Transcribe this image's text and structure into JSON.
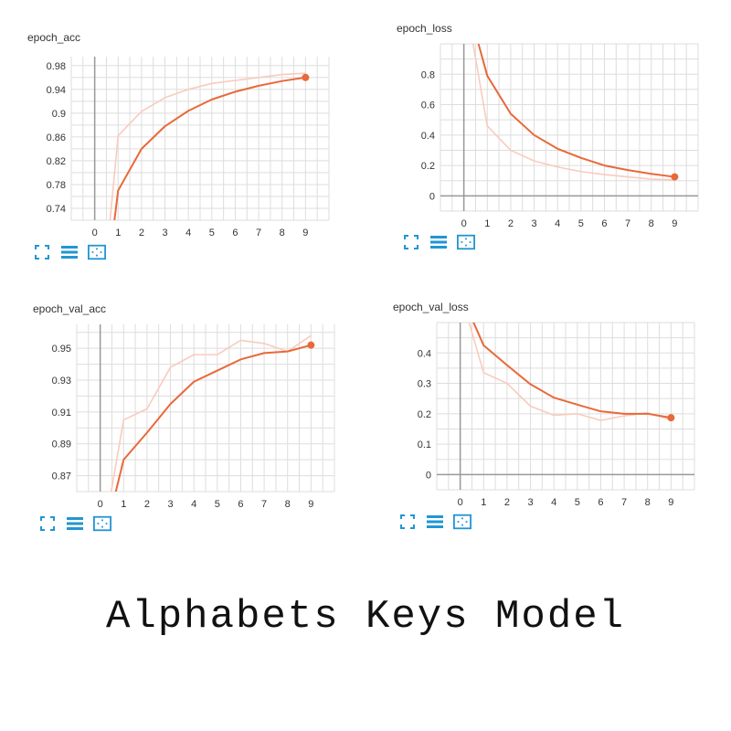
{
  "page_title": "Alphabets Keys Model",
  "colors": {
    "series": "#e8693a",
    "raw": "#f9cbbd",
    "axis": "#999999",
    "grid": "#dddddd",
    "icon": "#2196d3"
  },
  "toolbar_icons": [
    "expand-icon",
    "list-icon",
    "fit-icon"
  ],
  "chart_data": [
    {
      "type": "line",
      "title": "epoch_acc",
      "x": [
        0,
        1,
        2,
        3,
        4,
        5,
        6,
        7,
        8,
        9
      ],
      "xlim": [
        -1,
        10
      ],
      "ylim": [
        0.72,
        0.995
      ],
      "yticks": [
        "0.74",
        "0.78",
        "0.82",
        "0.86",
        "0.9",
        "0.94",
        "0.98"
      ],
      "ytick_values": [
        0.74,
        0.78,
        0.82,
        0.86,
        0.9,
        0.94,
        0.98
      ],
      "xticks": [
        "0",
        "1",
        "2",
        "3",
        "4",
        "5",
        "6",
        "7",
        "8",
        "9"
      ],
      "series": [
        {
          "values": [
            0.45,
            0.77,
            0.84,
            0.878,
            0.904,
            0.923,
            0.936,
            0.946,
            0.954,
            0.96
          ]
        },
        {
          "values": [
            0.45,
            0.862,
            0.903,
            0.926,
            0.94,
            0.95,
            0.955,
            0.96,
            0.965,
            0.967
          ]
        }
      ]
    },
    {
      "type": "line",
      "title": "epoch_loss",
      "x": [
        0,
        1,
        2,
        3,
        4,
        5,
        6,
        7,
        8,
        9
      ],
      "xlim": [
        -1,
        10
      ],
      "ylim": [
        -0.1,
        1.0
      ],
      "yticks": [
        "0",
        "0.2",
        "0.4",
        "0.6",
        "0.8"
      ],
      "ytick_values": [
        0,
        0.2,
        0.4,
        0.6,
        0.8
      ],
      "xticks": [
        "0",
        "1",
        "2",
        "3",
        "4",
        "5",
        "6",
        "7",
        "8",
        "9"
      ],
      "series": [
        {
          "values": [
            1.35,
            0.79,
            0.54,
            0.4,
            0.31,
            0.25,
            0.2,
            0.17,
            0.145,
            0.125
          ]
        },
        {
          "values": [
            1.35,
            0.46,
            0.3,
            0.23,
            0.19,
            0.16,
            0.14,
            0.125,
            0.11,
            0.105
          ]
        }
      ]
    },
    {
      "type": "line",
      "title": "epoch_val_acc",
      "x": [
        0,
        1,
        2,
        3,
        4,
        5,
        6,
        7,
        8,
        9
      ],
      "xlim": [
        -1,
        10
      ],
      "ylim": [
        0.86,
        0.965
      ],
      "yticks": [
        "0.87",
        "0.89",
        "0.91",
        "0.93",
        "0.95"
      ],
      "ytick_values": [
        0.87,
        0.89,
        0.91,
        0.93,
        0.95
      ],
      "xticks": [
        "0",
        "1",
        "2",
        "3",
        "4",
        "5",
        "6",
        "7",
        "8",
        "9"
      ],
      "series": [
        {
          "values": [
            0.82,
            0.88,
            0.897,
            0.915,
            0.929,
            0.936,
            0.943,
            0.947,
            0.948,
            0.952
          ]
        },
        {
          "values": [
            0.82,
            0.905,
            0.912,
            0.938,
            0.946,
            0.946,
            0.955,
            0.953,
            0.948,
            0.958
          ]
        }
      ]
    },
    {
      "type": "line",
      "title": "epoch_val_loss",
      "x": [
        0,
        1,
        2,
        3,
        4,
        5,
        6,
        7,
        8,
        9
      ],
      "xlim": [
        -1,
        10
      ],
      "ylim": [
        -0.05,
        0.5
      ],
      "yticks": [
        "0",
        "0.1",
        "0.2",
        "0.3",
        "0.4"
      ],
      "ytick_values": [
        0,
        0.1,
        0.2,
        0.3,
        0.4
      ],
      "xticks": [
        "0",
        "1",
        "2",
        "3",
        "4",
        "5",
        "6",
        "7",
        "8",
        "9"
      ],
      "series": [
        {
          "values": [
            0.6,
            0.425,
            0.36,
            0.297,
            0.253,
            0.23,
            0.208,
            0.2,
            0.2,
            0.187
          ]
        },
        {
          "values": [
            0.6,
            0.335,
            0.3,
            0.225,
            0.195,
            0.2,
            0.178,
            0.193,
            0.203,
            0.18
          ]
        }
      ]
    }
  ]
}
